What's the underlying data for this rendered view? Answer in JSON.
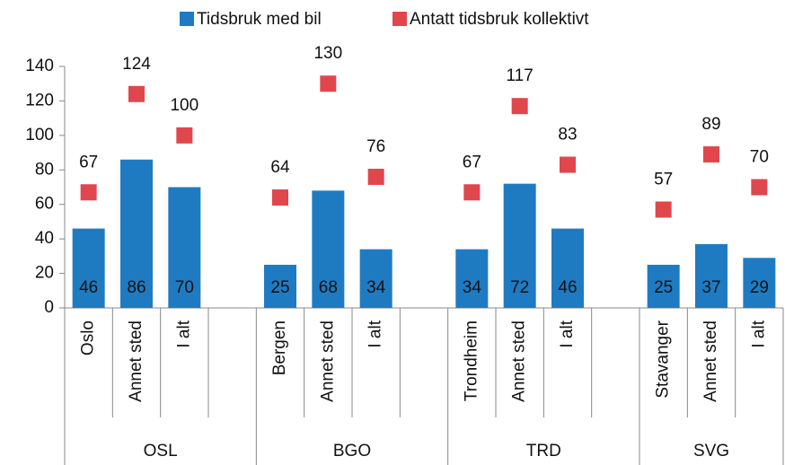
{
  "chart_data": {
    "type": "bar",
    "categories": [
      "Oslo",
      "Annet sted",
      "I alt",
      null,
      "Bergen",
      "Annet sted",
      "I alt",
      null,
      "Trondheim",
      "Annet sted",
      "I alt",
      null,
      "Stavanger",
      "Annet sted",
      "I alt"
    ],
    "groups": [
      "OSL",
      "BGO",
      "TRD",
      "SVG"
    ],
    "series": [
      {
        "name": "Tidsbruk med bil",
        "color": "#1f7bc1",
        "kind": "bar",
        "values": [
          46,
          86,
          70,
          null,
          25,
          68,
          34,
          null,
          34,
          72,
          46,
          null,
          25,
          37,
          29
        ]
      },
      {
        "name": "Antatt tidsbruk kollektivt",
        "color": "#e0474c",
        "kind": "marker",
        "values": [
          67,
          124,
          100,
          null,
          64,
          130,
          76,
          null,
          67,
          117,
          83,
          null,
          57,
          89,
          70
        ]
      }
    ],
    "ylim": [
      0,
      140
    ],
    "yticks": [
      0,
      20,
      40,
      60,
      80,
      100,
      120,
      140
    ],
    "grid": false,
    "legend": "top"
  }
}
